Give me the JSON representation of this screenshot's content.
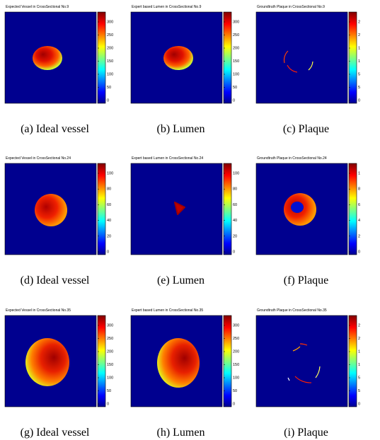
{
  "panels": [
    {
      "title": "Expected Vessel in CrossSectional No.9",
      "ticks": [
        "300",
        "250",
        "200",
        "150",
        "100",
        "50",
        "0"
      ],
      "caption": "(a) Ideal vessel"
    },
    {
      "title": "Expert based Lumen in CrossSectional No.9",
      "ticks": [
        "300",
        "250",
        "200",
        "150",
        "100",
        "50",
        "0"
      ],
      "caption": "(b) Lumen"
    },
    {
      "title": "Groundtruth Plaque in CrossSectional No.9",
      "ticks": [
        "2",
        "2",
        "1",
        "1",
        "5",
        "5",
        "0"
      ],
      "caption": "(c) Plaque"
    },
    {
      "title": "Expected Vessel in CrossSectional No.24",
      "ticks": [
        "100",
        "80",
        "60",
        "40",
        "20",
        "0"
      ],
      "caption": "(d) Ideal vessel"
    },
    {
      "title": "Expert based Lumen in CrossSectional No.24",
      "ticks": [
        "100",
        "80",
        "60",
        "40",
        "20",
        "0"
      ],
      "caption": "(e) Lumen"
    },
    {
      "title": "Groundtruth Plaque in CrossSectional No.24",
      "ticks": [
        "1",
        "8",
        "6",
        "4",
        "2",
        "0"
      ],
      "caption": "(f) Plaque"
    },
    {
      "title": "Expected Vessel in CrossSectional No.35",
      "ticks": [
        "300",
        "250",
        "200",
        "150",
        "100",
        "50",
        "0"
      ],
      "caption": "(g) Ideal vessel"
    },
    {
      "title": "Expert based Lumen in CrossSectional No.35",
      "ticks": [
        "300",
        "250",
        "200",
        "150",
        "100",
        "50",
        "0"
      ],
      "caption": "(h) Lumen"
    },
    {
      "title": "Groundtruth Plaque in CrossSectional No.35",
      "ticks": [
        "2",
        "2",
        "1",
        "1",
        "5",
        "5",
        "0"
      ],
      "caption": "(i) Plaque"
    }
  ]
}
